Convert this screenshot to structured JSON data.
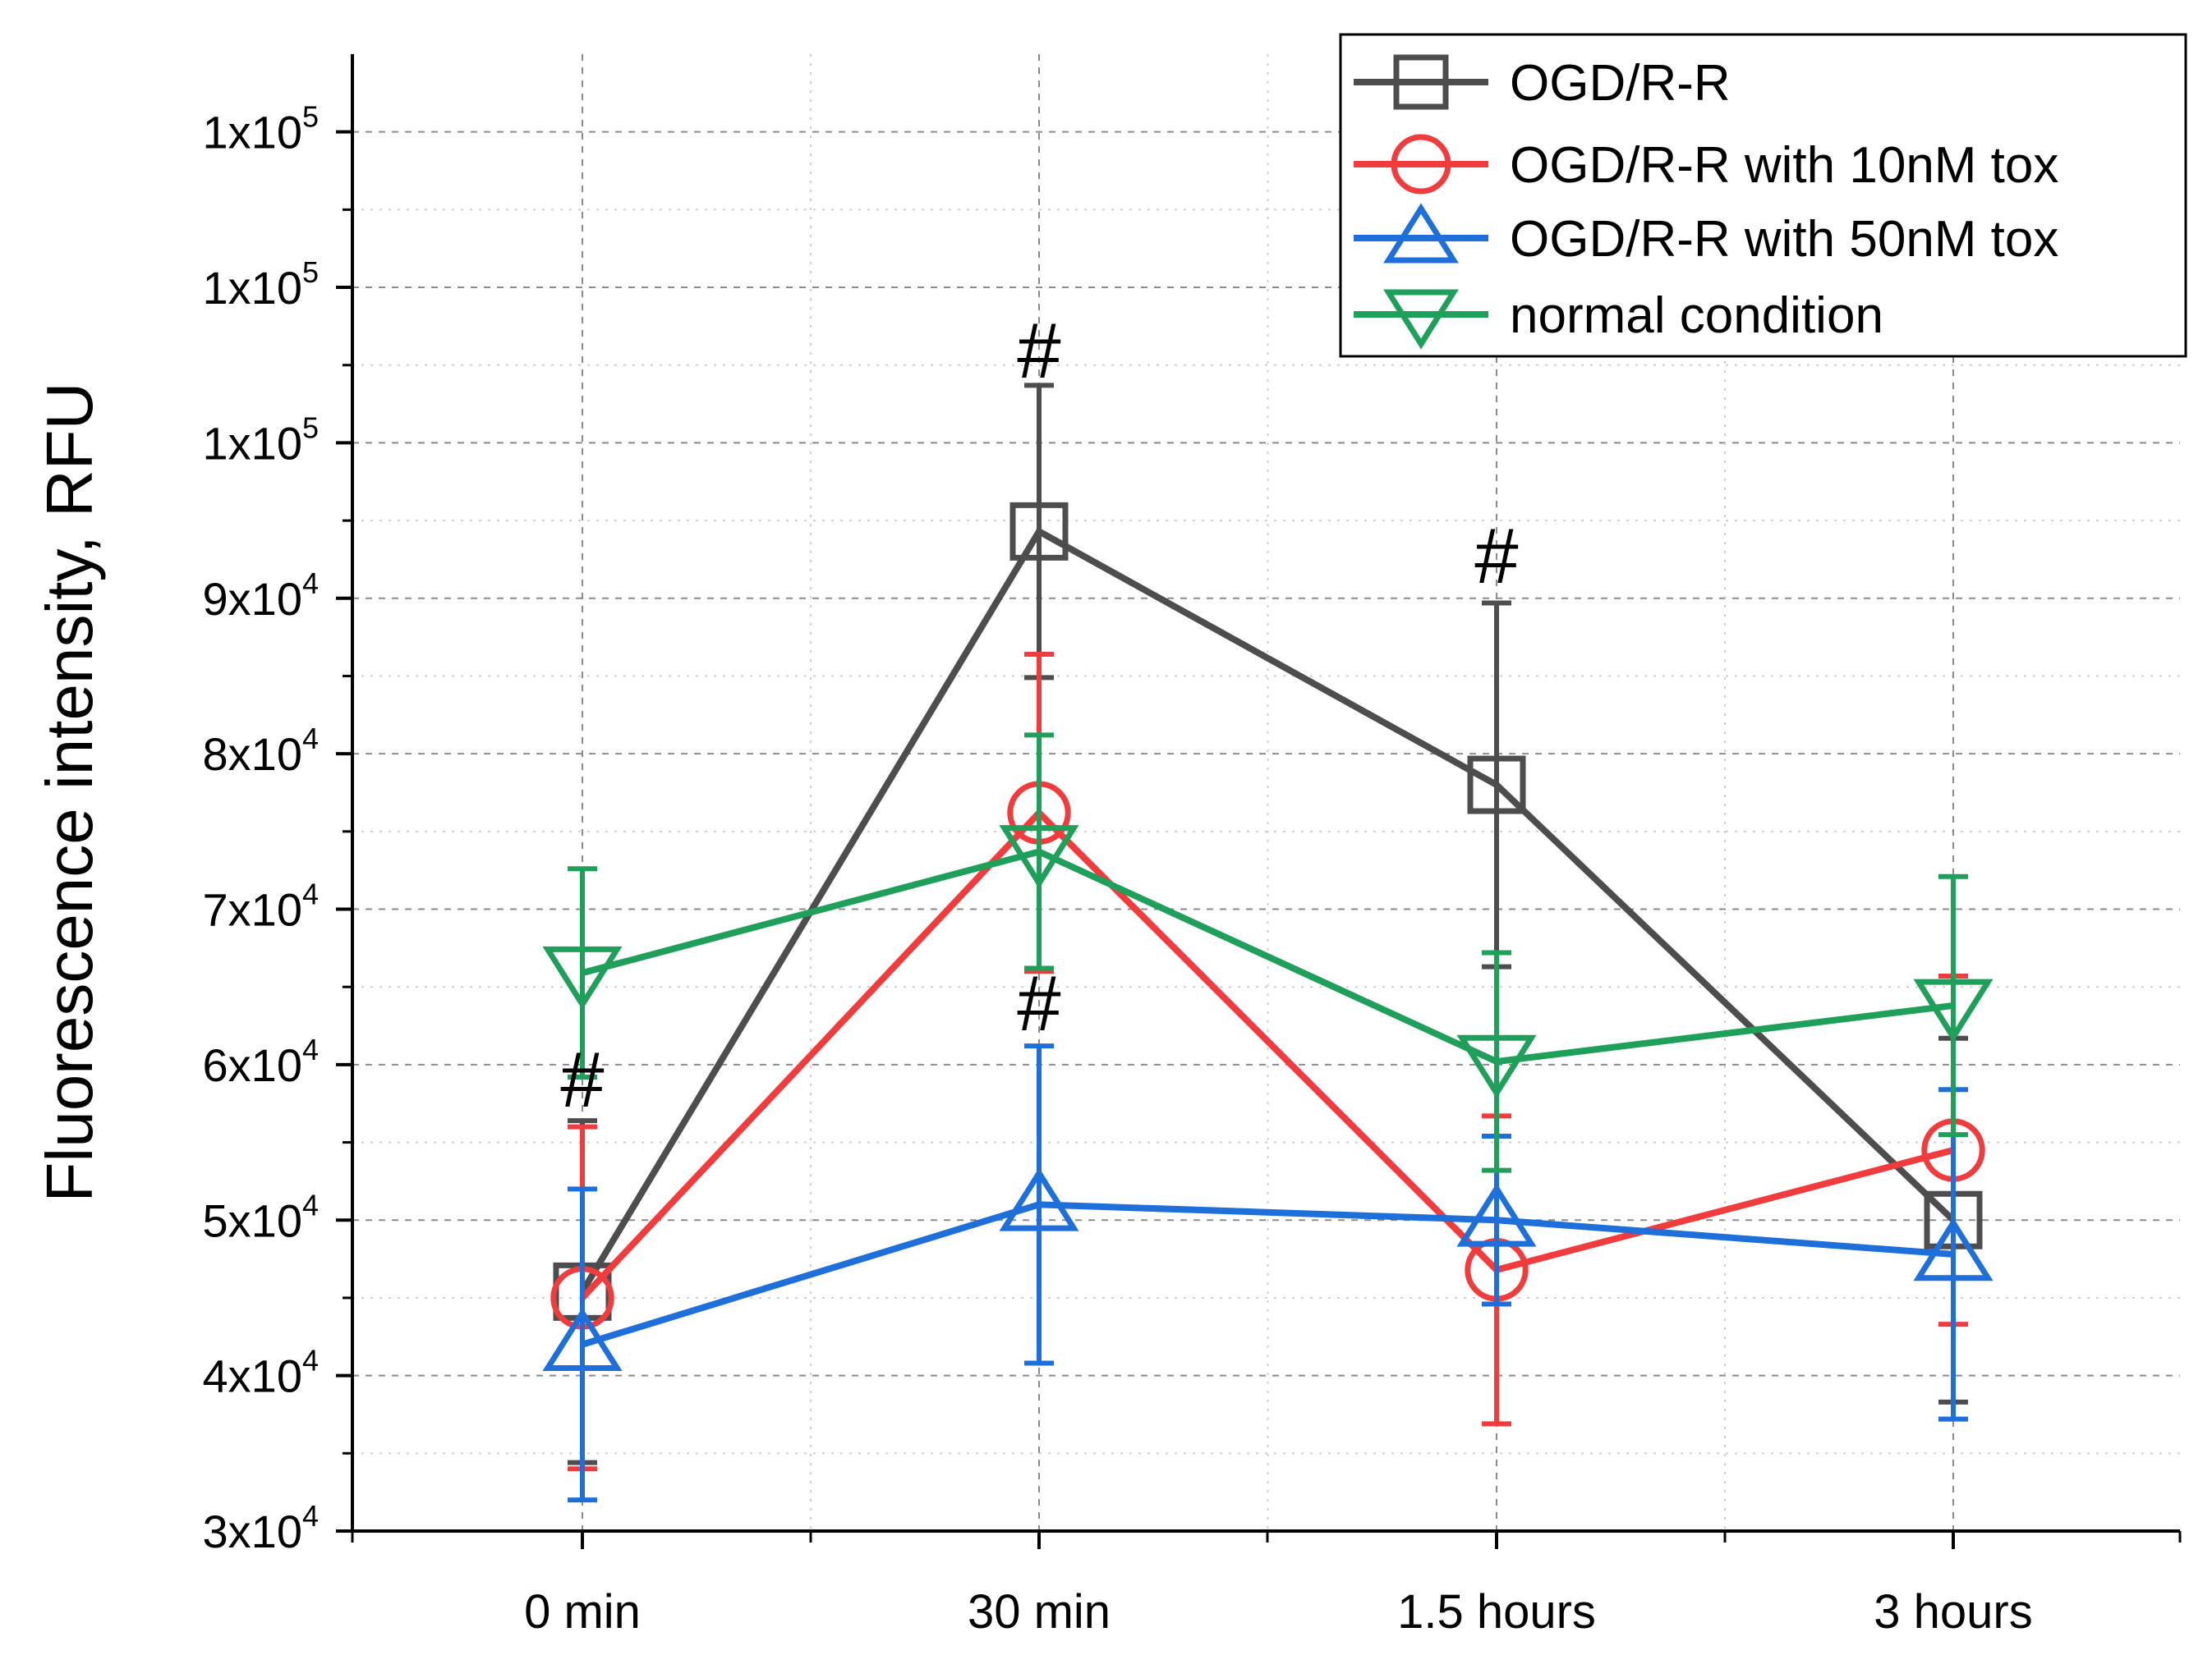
{
  "chart_data": {
    "type": "line",
    "title": "",
    "xlabel": "",
    "ylabel": "Fluorescence intensity, RFU",
    "categories": [
      "0 min",
      "30 min",
      "1.5 hours",
      "3 hours"
    ],
    "ylim": [
      30000,
      125000
    ],
    "yticks": [
      {
        "value": 30000,
        "mant": "3x10",
        "exp": "4"
      },
      {
        "value": 40000,
        "mant": "4x10",
        "exp": "4"
      },
      {
        "value": 50000,
        "mant": "5x10",
        "exp": "4"
      },
      {
        "value": 60000,
        "mant": "6x10",
        "exp": "4"
      },
      {
        "value": 70000,
        "mant": "7x10",
        "exp": "4"
      },
      {
        "value": 80000,
        "mant": "8x10",
        "exp": "4"
      },
      {
        "value": 90000,
        "mant": "9x10",
        "exp": "4"
      },
      {
        "value": 100000,
        "mant": "1x10",
        "exp": "5"
      },
      {
        "value": 110000,
        "mant": "1x10",
        "exp": "5"
      },
      {
        "value": 120000,
        "mant": "1x10",
        "exp": "5"
      }
    ],
    "grid": true,
    "legend_position": "top-right",
    "series": [
      {
        "name": "OGD/R-R",
        "color": "#4d4d4d",
        "marker": "square",
        "values": [
          45400,
          94300,
          78000,
          50000
        ],
        "err": [
          11000,
          9400,
          11700,
          11700
        ]
      },
      {
        "name": "OGD/R-R with 10nM tox",
        "color": "#f03c3c",
        "marker": "circle",
        "values": [
          45000,
          76200,
          46800,
          54500
        ],
        "err": [
          11000,
          10200,
          9900,
          11200
        ]
      },
      {
        "name": "OGD/R-R with 50nM tox",
        "color": "#1e6fd9",
        "marker": "triangle-up",
        "values": [
          42000,
          51000,
          50000,
          47800
        ],
        "err": [
          10000,
          10200,
          5400,
          10600
        ]
      },
      {
        "name": "normal condition",
        "color": "#1fa05a",
        "marker": "triangle-down",
        "values": [
          65900,
          73700,
          60200,
          63800
        ],
        "err": [
          6700,
          7500,
          7000,
          8300
        ]
      }
    ],
    "annotations": [
      {
        "text": "#",
        "x": "0 min",
        "y": 57300
      },
      {
        "text": "#",
        "x": "30 min",
        "y": 104200
      },
      {
        "text": "#",
        "x": "30 min",
        "y": 62200
      },
      {
        "text": "#",
        "x": "1.5 hours",
        "y": 91000
      }
    ]
  }
}
